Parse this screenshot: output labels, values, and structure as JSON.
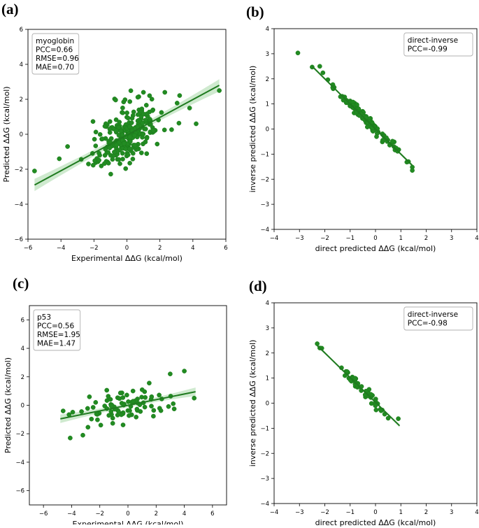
{
  "figure": {
    "colors": {
      "point": "#228B22",
      "point_edge": "#1a7a1a",
      "line": "#1f7a1f",
      "band": "#bfe3bf"
    }
  },
  "chart_data": [
    {
      "type": "scatter",
      "panel_label": "(a)",
      "xlabel": "Experimental ΔΔG (kcal/mol)",
      "ylabel": "Predicted ΔΔG (kcal/mol)",
      "xlim": [
        -6,
        6
      ],
      "ylim": [
        -6,
        6
      ],
      "xticks": [
        -6,
        -4,
        -2,
        0,
        2,
        4,
        6
      ],
      "yticks": [
        -6,
        -4,
        -2,
        0,
        2,
        4,
        6
      ],
      "xtick_labels": [
        "−6",
        "−4",
        "−2",
        "0",
        "2",
        "4",
        "6"
      ],
      "ytick_labels": [
        "−6",
        "−4",
        "−2",
        "0",
        "2",
        "4",
        "6"
      ],
      "legend": [
        "myoglobin",
        "PCC=0.66",
        "RMSE=0.96",
        "MAE=0.70"
      ],
      "legend_position": "top-left",
      "regression": {
        "x": [
          -5.6,
          5.6
        ],
        "y": [
          -2.9,
          2.8
        ],
        "ci": 0.35
      },
      "points": {
        "seed": 11,
        "n": 260,
        "x_center": 0.1,
        "x_spread": 1.3,
        "y_center": 0.05,
        "slope": 0.5,
        "noise": 0.8,
        "extra": [
          [
            -5.6,
            -2.1
          ],
          [
            5.6,
            2.5
          ],
          [
            -4.1,
            -1.4
          ],
          [
            4.2,
            0.6
          ],
          [
            3.8,
            1.5
          ],
          [
            -3.6,
            -0.7
          ],
          [
            2.3,
            2.4
          ],
          [
            1.0,
            2.4
          ]
        ]
      }
    },
    {
      "type": "scatter",
      "panel_label": "(b)",
      "xlabel": "direct predicted ΔΔG (kcal/mol)",
      "ylabel": "inverse predicted ΔΔG (kcal/mol)",
      "xlim": [
        -4,
        4
      ],
      "ylim": [
        -4,
        4
      ],
      "xticks": [
        -4,
        -3,
        -2,
        -1,
        0,
        1,
        2,
        3,
        4
      ],
      "yticks": [
        -4,
        -3,
        -2,
        -1,
        0,
        1,
        2,
        3,
        4
      ],
      "xtick_labels": [
        "−4",
        "−3",
        "−2",
        "−1",
        "0",
        "1",
        "2",
        "3",
        "4"
      ],
      "ytick_labels": [
        "−4",
        "−3",
        "−2",
        "−1",
        "0",
        "1",
        "2",
        "3",
        "4"
      ],
      "legend": [
        "direct-inverse",
        "PCC=-0.99"
      ],
      "legend_position": "top-right",
      "regression": {
        "x": [
          -2.5,
          1.45
        ],
        "y": [
          2.5,
          -1.45
        ],
        "ci": 0.06
      },
      "points": {
        "seed": 23,
        "n": 140,
        "x_center": -0.35,
        "x_spread": 0.8,
        "y_center": 0.0,
        "slope": -1.0,
        "noise": 0.09,
        "extra": [
          [
            -2.5,
            2.47
          ],
          [
            -2.2,
            2.5
          ],
          [
            1.45,
            -1.65
          ],
          [
            1.3,
            -1.3
          ]
        ]
      }
    },
    {
      "type": "scatter",
      "panel_label": "(c)",
      "xlabel": "Experimental ΔΔG (kcal/mol)",
      "ylabel": "Predicted ΔΔG (kcal/mol)",
      "xlim": [
        -7,
        7
      ],
      "ylim": [
        -7,
        7
      ],
      "xticks": [
        -6,
        -4,
        -2,
        0,
        2,
        4,
        6
      ],
      "yticks": [
        -6,
        -4,
        -2,
        0,
        2,
        4,
        6
      ],
      "xtick_labels": [
        "−6",
        "−4",
        "−2",
        "0",
        "2",
        "4",
        "6"
      ],
      "ytick_labels": [
        "−6",
        "−4",
        "−2",
        "0",
        "2",
        "4",
        "6"
      ],
      "legend": [
        "p53",
        "PCC=0.56",
        "RMSE=1.95",
        "MAE=1.47"
      ],
      "legend_position": "top-left",
      "regression": {
        "x": [
          -4.8,
          4.8
        ],
        "y": [
          -0.95,
          0.95
        ],
        "ci": 0.3
      },
      "points": {
        "seed": 37,
        "n": 85,
        "x_center": 0.0,
        "x_spread": 2.2,
        "y_center": 0.0,
        "slope": 0.2,
        "noise": 0.55,
        "extra": [
          [
            -4.1,
            -2.3
          ],
          [
            -3.2,
            -2.1
          ],
          [
            3.0,
            2.2
          ],
          [
            4.0,
            2.4
          ],
          [
            4.7,
            0.5
          ],
          [
            -4.6,
            -0.4
          ]
        ]
      }
    },
    {
      "type": "scatter",
      "panel_label": "(d)",
      "xlabel": "direct predicted ΔΔG (kcal/mol)",
      "ylabel": "inverse predicted ΔΔG (kcal/mol)",
      "xlim": [
        -4,
        4
      ],
      "ylim": [
        -4,
        4
      ],
      "xticks": [
        -4,
        -3,
        -2,
        -1,
        0,
        1,
        2,
        3,
        4
      ],
      "yticks": [
        -4,
        -3,
        -2,
        -1,
        0,
        1,
        2,
        3,
        4
      ],
      "xtick_labels": [
        "−4",
        "−3",
        "−2",
        "−1",
        "0",
        "1",
        "2",
        "3",
        "4"
      ],
      "ytick_labels": [
        "−4",
        "−3",
        "−2",
        "−1",
        "0",
        "1",
        "2",
        "3",
        "4"
      ],
      "legend": [
        "direct-inverse",
        "PCC=-0.98"
      ],
      "legend_position": "top-right",
      "regression": {
        "x": [
          -2.3,
          0.95
        ],
        "y": [
          2.3,
          -0.9
        ],
        "ci": 0.06
      },
      "points": {
        "seed": 51,
        "n": 50,
        "x_center": -0.6,
        "x_spread": 0.8,
        "y_center": 0.0,
        "slope": -1.0,
        "noise": 0.1,
        "extra": [
          [
            -2.3,
            2.37
          ],
          [
            -2.2,
            2.2
          ],
          [
            0.9,
            -0.62
          ],
          [
            0.5,
            -0.6
          ]
        ]
      }
    }
  ]
}
